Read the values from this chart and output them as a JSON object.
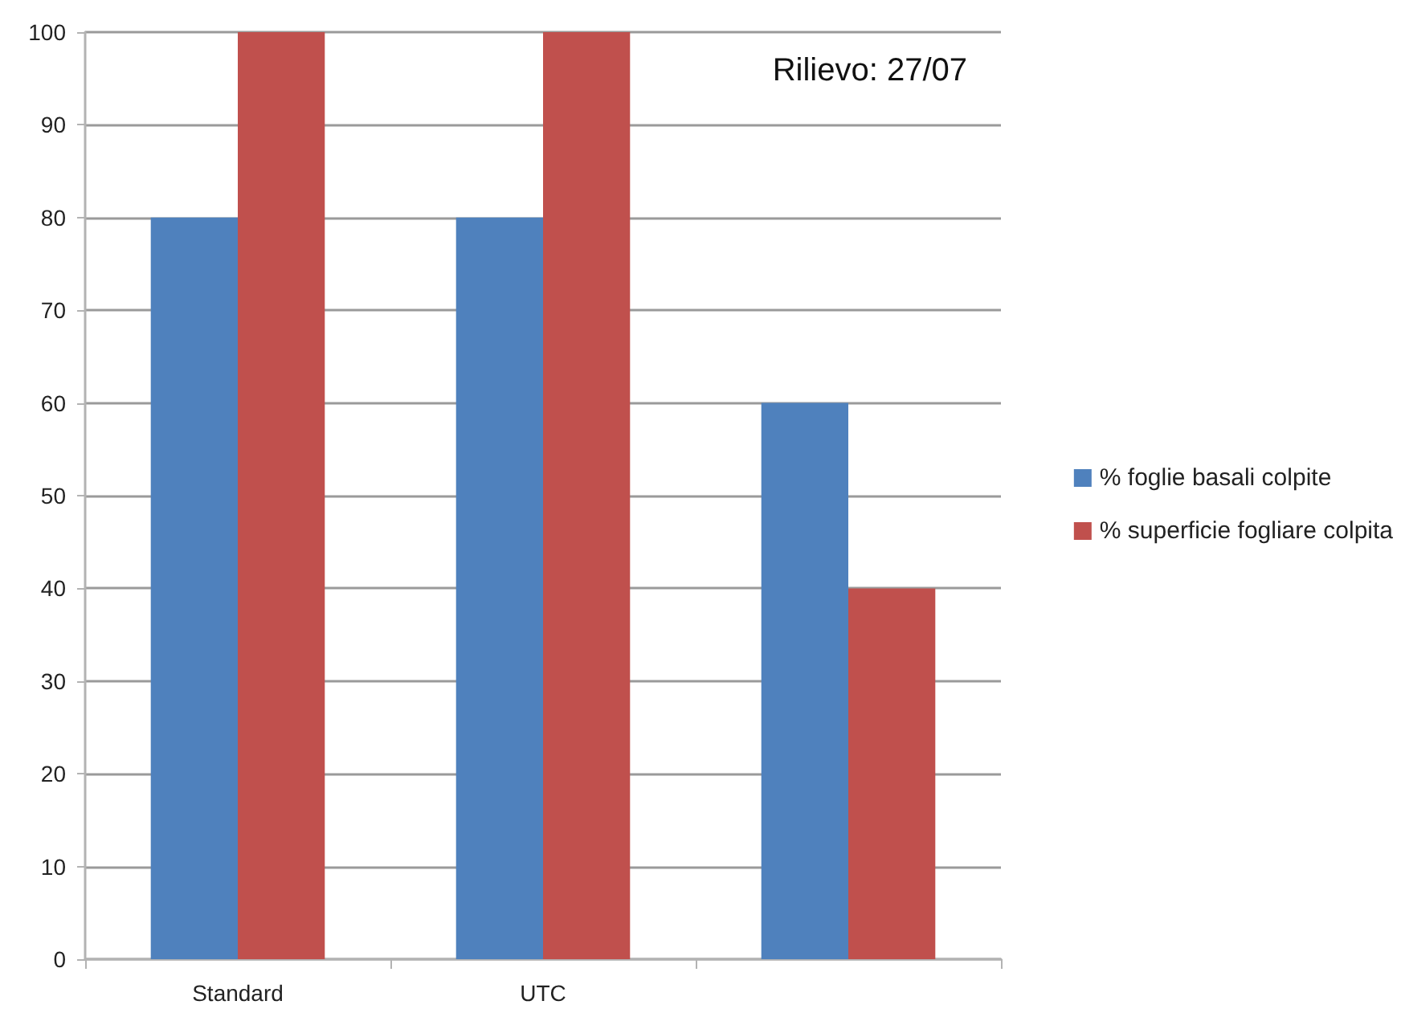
{
  "chart_data": {
    "type": "bar",
    "annotations": [
      "Rilievo: 27/07"
    ],
    "categories": [
      "Standard",
      "UTC",
      null
    ],
    "series": [
      {
        "name": "% foglie basali colpite",
        "color": "#4f81bd",
        "values": [
          80,
          80,
          60
        ]
      },
      {
        "name": "% superficie fogliare colpita",
        "color": "#c0504d",
        "values": [
          100,
          100,
          40
        ]
      }
    ],
    "ylim": [
      0,
      100
    ],
    "yticks": [
      0,
      10,
      20,
      30,
      40,
      50,
      60,
      70,
      80,
      90,
      100
    ],
    "grid": "y",
    "legend": "right"
  }
}
